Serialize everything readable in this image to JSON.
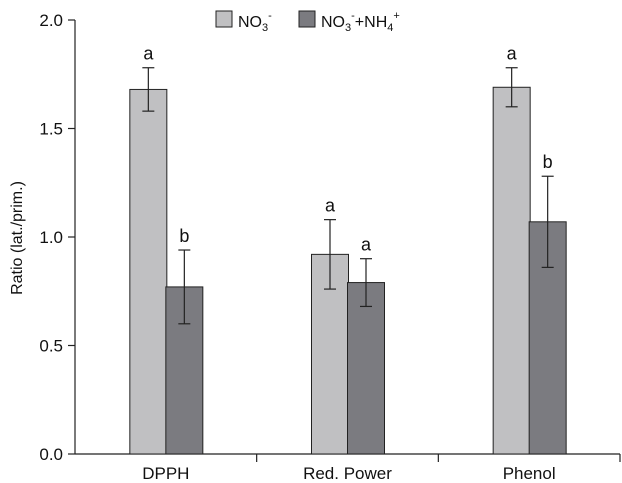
{
  "chart_data": {
    "type": "bar",
    "title": "",
    "xlabel": "",
    "ylabel": "Ratio (lat./prim.)",
    "ylim": [
      0,
      2.0
    ],
    "yticks": [
      "0.0",
      "0.5",
      "1.0",
      "1.5",
      "2.0"
    ],
    "categories": [
      "DPPH",
      "Red. Power",
      "Phenol"
    ],
    "series": [
      {
        "name": "NO3-",
        "color": "#c0c0c2",
        "values": [
          1.68,
          0.92,
          1.69
        ],
        "errors": [
          0.1,
          0.16,
          0.09
        ],
        "letters": [
          "a",
          "a",
          "a"
        ]
      },
      {
        "name": "NO3-+NH4+",
        "color": "#7b7b80",
        "values": [
          0.77,
          0.79,
          1.07
        ],
        "errors": [
          0.17,
          0.11,
          0.21
        ],
        "letters": [
          "b",
          "a",
          "b"
        ]
      }
    ],
    "legend": {
      "placement": "top-center",
      "entries": [
        {
          "base": "NO",
          "sub1": "3",
          "sup1": "-",
          "rest": "",
          "sub2": "",
          "sup2": ""
        },
        {
          "base": "NO",
          "sub1": "3",
          "sup1": "-",
          "rest": "+NH",
          "sub2": "4",
          "sup2": "+"
        }
      ]
    },
    "grid": false
  }
}
